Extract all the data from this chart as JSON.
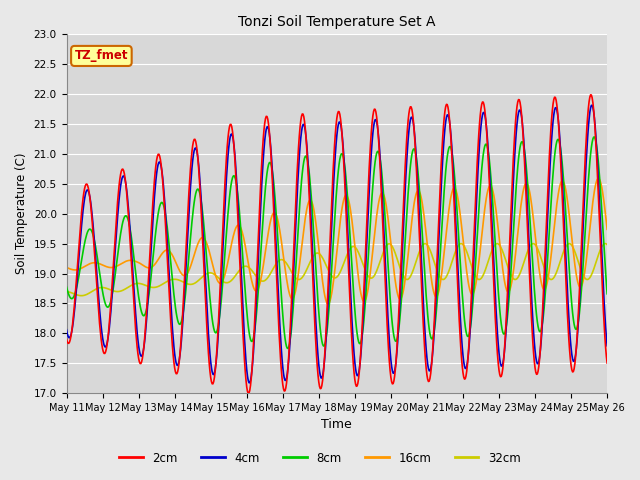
{
  "title": "Tonzi Soil Temperature Set A",
  "xlabel": "Time",
  "ylabel": "Soil Temperature (C)",
  "ylim": [
    17.0,
    23.0
  ],
  "yticks": [
    17.0,
    17.5,
    18.0,
    18.5,
    19.0,
    19.5,
    20.0,
    20.5,
    21.0,
    21.5,
    22.0,
    22.5,
    23.0
  ],
  "xtick_labels": [
    "May 11",
    "May 12",
    "May 13",
    "May 14",
    "May 15",
    "May 16",
    "May 17",
    "May 18",
    "May 19",
    "May 20",
    "May 21",
    "May 22",
    "May 23",
    "May 24",
    "May 25",
    "May 26"
  ],
  "annotation_text": "TZ_fmet",
  "annotation_color": "#cc0000",
  "annotation_bg": "#ffff99",
  "annotation_border": "#cc6600",
  "colors": {
    "2cm": "#ff0000",
    "4cm": "#0000cc",
    "8cm": "#00cc00",
    "16cm": "#ff9900",
    "32cm": "#cccc00"
  },
  "line_width": 1.2,
  "fig_bg": "#e8e8e8",
  "plot_bg": "#d8d8d8",
  "grid_color": "#ffffff"
}
